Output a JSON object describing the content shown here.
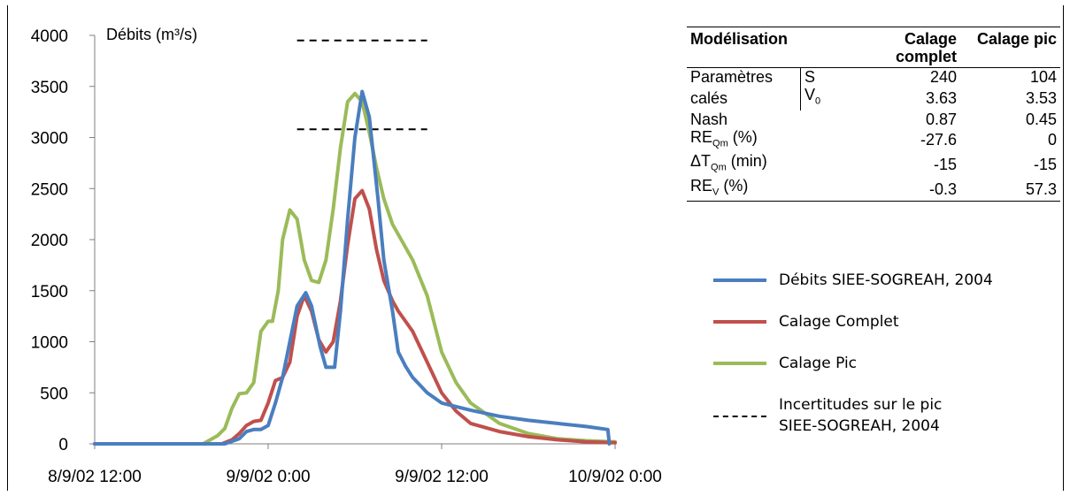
{
  "chart_data": {
    "type": "line",
    "ylabel": "Débits (m³/s)",
    "ylim": [
      0,
      4000
    ],
    "yticks": [
      "0",
      "500",
      "1000",
      "1500",
      "2000",
      "2500",
      "3000",
      "3500",
      "4000"
    ],
    "xlim": [
      0,
      36
    ],
    "xticks": [
      {
        "value": 0,
        "label": "8/9/02 12:00"
      },
      {
        "value": 12,
        "label": "9/9/02 0:00"
      },
      {
        "value": 24,
        "label": "9/9/02 12:00"
      },
      {
        "value": 36,
        "label": "10/9/02 0:00"
      }
    ],
    "series": [
      {
        "name": "Débits SIEE-SOGREAH, 2004",
        "color": "#4a7ebf",
        "x": [
          0,
          8,
          9,
          10,
          10.5,
          11,
          11.5,
          12,
          12.5,
          13,
          13.5,
          14,
          14.6,
          15,
          15.6,
          16,
          16.6,
          17,
          17.5,
          18,
          18.5,
          19,
          19.6,
          20,
          20.6,
          21,
          21.5,
          22,
          23,
          24,
          26,
          28,
          30,
          32,
          34,
          35.5,
          35.6
        ],
        "y": [
          0,
          0,
          0,
          50,
          120,
          140,
          140,
          180,
          400,
          650,
          1000,
          1350,
          1480,
          1350,
          950,
          750,
          750,
          1300,
          2200,
          3000,
          3450,
          3200,
          2400,
          1800,
          1300,
          900,
          760,
          650,
          500,
          400,
          330,
          270,
          230,
          200,
          170,
          140,
          0
        ]
      },
      {
        "name": "Calage Complet",
        "color": "#c0504d",
        "x": [
          0,
          8.8,
          9.5,
          10,
          10.5,
          11,
          11.5,
          12,
          12.5,
          13,
          13.5,
          14,
          14.5,
          15,
          15.5,
          16,
          16.5,
          17,
          17.5,
          18,
          18.5,
          19,
          19.5,
          20,
          20.6,
          21,
          21.5,
          22,
          23,
          24,
          25,
          26,
          28,
          30,
          32,
          34,
          36
        ],
        "y": [
          0,
          0,
          40,
          100,
          180,
          220,
          230,
          400,
          620,
          650,
          800,
          1250,
          1450,
          1300,
          1020,
          900,
          1000,
          1400,
          1950,
          2400,
          2480,
          2300,
          1900,
          1600,
          1400,
          1300,
          1200,
          1100,
          800,
          500,
          320,
          200,
          120,
          70,
          40,
          20,
          10
        ]
      },
      {
        "name": "Calage Pic",
        "color": "#9bbb59",
        "x": [
          0,
          7.5,
          8,
          8.5,
          9,
          9.5,
          10,
          10.5,
          11,
          11.5,
          12,
          12.3,
          12.7,
          13,
          13.5,
          14,
          14.5,
          15,
          15.5,
          16,
          16.5,
          17,
          17.5,
          18,
          18.5,
          19,
          19.5,
          20,
          20.6,
          21,
          22,
          23,
          24,
          25,
          26,
          28,
          30,
          32,
          34,
          36
        ],
        "y": [
          0,
          0,
          40,
          80,
          150,
          350,
          490,
          500,
          600,
          1100,
          1200,
          1200,
          1500,
          2000,
          2290,
          2200,
          1800,
          1600,
          1580,
          1800,
          2300,
          2900,
          3350,
          3430,
          3350,
          3050,
          2700,
          2400,
          2150,
          2050,
          1800,
          1450,
          900,
          600,
          400,
          200,
          100,
          50,
          30,
          20
        ]
      }
    ],
    "dashed_lines": [
      {
        "x": [
          14,
          23
        ],
        "y": 3950
      },
      {
        "x": [
          14,
          23
        ],
        "y": 3080
      }
    ]
  },
  "table": {
    "header": {
      "col1": "Modélisation",
      "col2": "Calage complet",
      "col3": "Calage pic"
    },
    "rows": {
      "params_label_1": "Paramètres",
      "params_label_2": "calés",
      "s_label": "S",
      "s_complet": "240",
      "s_pic": "104",
      "v0_label": "V",
      "v0_sub": "0",
      "v0_complet": "3.63",
      "v0_pic": "3.53",
      "nash_label": "Nash",
      "nash_complet": "0.87",
      "nash_pic": "0.45",
      "reqm_label": "RE",
      "reqm_sub": "Qm",
      "reqm_unit": " (%)",
      "reqm_complet": "-27.6",
      "reqm_pic": "0",
      "dt_label": "ΔT",
      "dt_sub": "Qm",
      "dt_unit": " (min)",
      "dt_complet": "-15",
      "dt_pic": "-15",
      "rev_label": "RE",
      "rev_sub": "V",
      "rev_unit": " (%)",
      "rev_complet": "-0.3",
      "rev_pic": "57.3"
    }
  },
  "legend": {
    "item1": "Débits SIEE-SOGREAH, 2004",
    "item2": "Calage Complet",
    "item3": "Calage Pic",
    "item4_line1": "Incertitudes sur le pic",
    "item4_line2": "SIEE-SOGREAH, 2004"
  }
}
